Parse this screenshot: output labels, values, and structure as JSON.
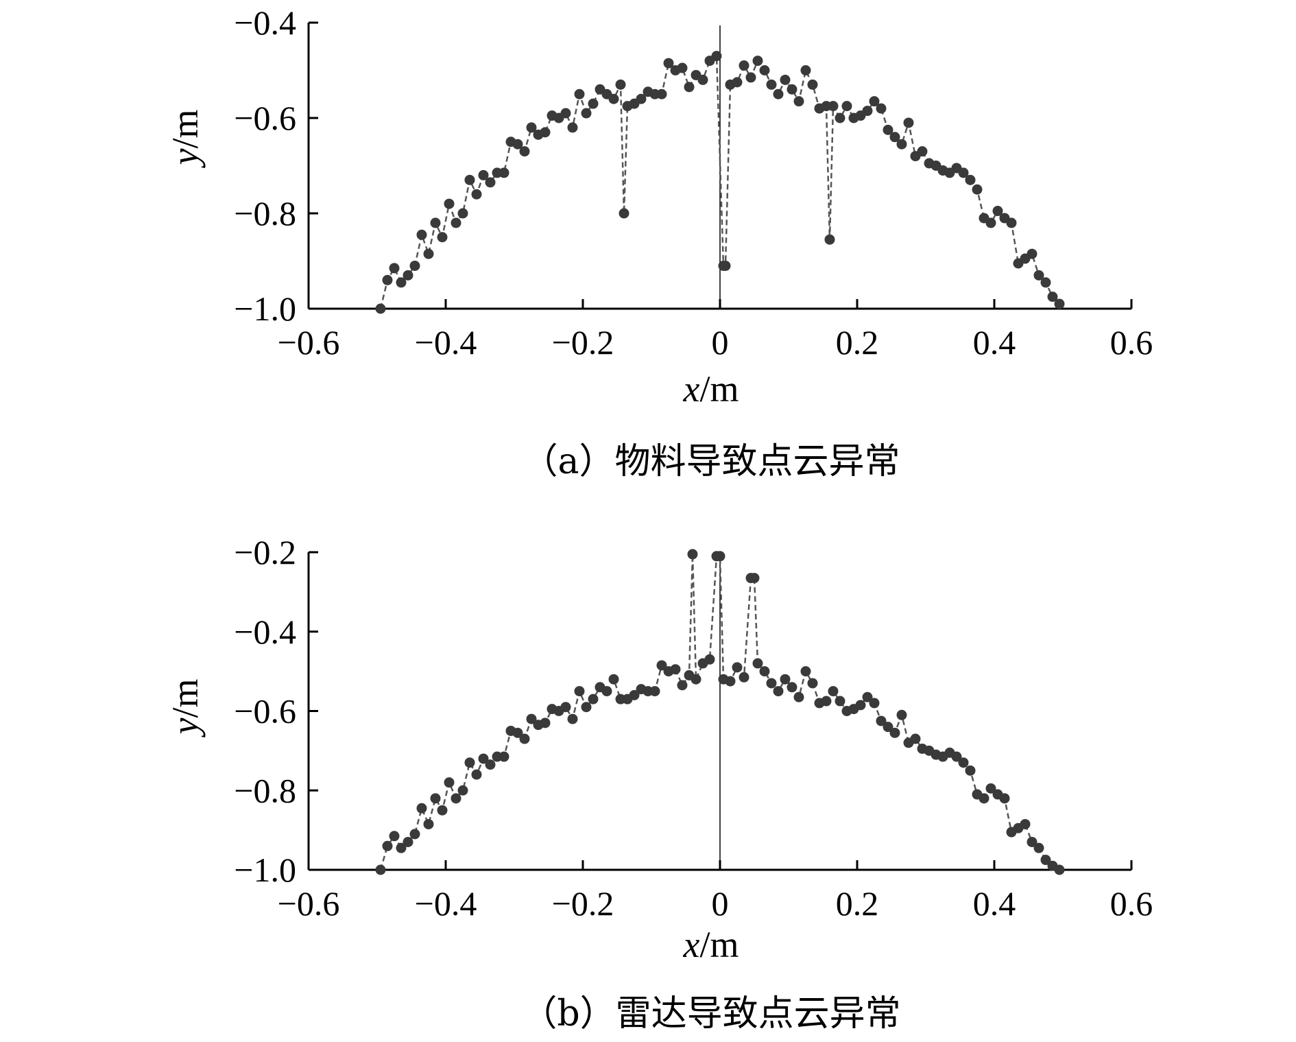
{
  "chart_data": [
    {
      "type": "scatter",
      "caption": "（a）物料导致点云异常",
      "xlabel": {
        "var": "x",
        "unit": "/m"
      },
      "ylabel": {
        "var": "y",
        "unit": "/m"
      },
      "xlim": [
        -0.6,
        0.6
      ],
      "ylim": [
        -1.0,
        -0.4
      ],
      "xticks": [
        "−0.6",
        "−0.4",
        "−0.2",
        "0",
        "0.2",
        "0.4",
        "0.6"
      ],
      "yticks": [
        "−0.4",
        "−0.6",
        "−0.8",
        "−1.0"
      ],
      "xtick_values": [
        -0.6,
        -0.4,
        -0.2,
        0,
        0.2,
        0.4,
        0.6
      ],
      "ytick_values": [
        -0.4,
        -0.6,
        -0.8,
        -1.0
      ],
      "grid": false,
      "center_line_x": 0,
      "marker_color": "#3a3a3a",
      "line_color": "#555555",
      "series": [
        {
          "x": [
            -0.495,
            -0.485,
            -0.475,
            -0.465,
            -0.455,
            -0.445,
            -0.435,
            -0.425,
            -0.415,
            -0.405,
            -0.395,
            -0.385,
            -0.375,
            -0.365,
            -0.355,
            -0.345,
            -0.335,
            -0.325,
            -0.315,
            -0.305,
            -0.295,
            -0.285,
            -0.275,
            -0.265,
            -0.255,
            -0.245,
            -0.235,
            -0.225,
            -0.215,
            -0.205,
            -0.195,
            -0.185,
            -0.175,
            -0.165,
            -0.155,
            -0.145,
            -0.14,
            -0.135,
            -0.125,
            -0.115,
            -0.105,
            -0.095,
            -0.085,
            -0.075,
            -0.065,
            -0.055,
            -0.045,
            -0.035,
            -0.025,
            -0.015,
            -0.005,
            0.005,
            0.008,
            0.015,
            0.025,
            0.035,
            0.045,
            0.055,
            0.065,
            0.075,
            0.085,
            0.095,
            0.105,
            0.115,
            0.125,
            0.135,
            0.145,
            0.155,
            0.16,
            0.165,
            0.175,
            0.185,
            0.195,
            0.205,
            0.215,
            0.225,
            0.235,
            0.245,
            0.255,
            0.265,
            0.275,
            0.285,
            0.295,
            0.305,
            0.315,
            0.325,
            0.335,
            0.345,
            0.355,
            0.365,
            0.375,
            0.385,
            0.395,
            0.405,
            0.415,
            0.425,
            0.435,
            0.445,
            0.455,
            0.465,
            0.475,
            0.485,
            0.495
          ],
          "y": [
            -1.0,
            -0.94,
            -0.915,
            -0.945,
            -0.93,
            -0.91,
            -0.845,
            -0.885,
            -0.82,
            -0.85,
            -0.78,
            -0.82,
            -0.8,
            -0.73,
            -0.76,
            -0.72,
            -0.735,
            -0.715,
            -0.715,
            -0.65,
            -0.655,
            -0.67,
            -0.62,
            -0.635,
            -0.63,
            -0.595,
            -0.6,
            -0.59,
            -0.62,
            -0.55,
            -0.59,
            -0.57,
            -0.54,
            -0.55,
            -0.56,
            -0.53,
            -0.8,
            -0.575,
            -0.57,
            -0.56,
            -0.545,
            -0.55,
            -0.55,
            -0.485,
            -0.5,
            -0.495,
            -0.535,
            -0.51,
            -0.52,
            -0.48,
            -0.47,
            -0.91,
            -0.91,
            -0.53,
            -0.525,
            -0.49,
            -0.515,
            -0.48,
            -0.5,
            -0.53,
            -0.55,
            -0.52,
            -0.54,
            -0.565,
            -0.5,
            -0.53,
            -0.58,
            -0.575,
            -0.855,
            -0.575,
            -0.6,
            -0.575,
            -0.6,
            -0.595,
            -0.585,
            -0.565,
            -0.58,
            -0.625,
            -0.64,
            -0.655,
            -0.61,
            -0.68,
            -0.67,
            -0.695,
            -0.7,
            -0.71,
            -0.715,
            -0.705,
            -0.715,
            -0.73,
            -0.75,
            -0.81,
            -0.82,
            -0.795,
            -0.81,
            -0.82,
            -0.905,
            -0.895,
            -0.885,
            -0.93,
            -0.945,
            -0.975,
            -0.99
          ]
        }
      ]
    },
    {
      "type": "scatter",
      "caption": "（b）雷达导致点云异常",
      "xlabel": {
        "var": "x",
        "unit": "/m"
      },
      "ylabel": {
        "var": "y",
        "unit": "/m"
      },
      "xlim": [
        -0.6,
        0.6
      ],
      "ylim": [
        -1.0,
        -0.2
      ],
      "xticks": [
        "−0.6",
        "−0.4",
        "−0.2",
        "0",
        "0.2",
        "0.4",
        "0.6"
      ],
      "yticks": [
        "−0.2",
        "−0.4",
        "−0.6",
        "−0.8",
        "−1.0"
      ],
      "xtick_values": [
        -0.6,
        -0.4,
        -0.2,
        0,
        0.2,
        0.4,
        0.6
      ],
      "ytick_values": [
        -0.2,
        -0.4,
        -0.6,
        -0.8,
        -1.0
      ],
      "grid": false,
      "center_line_x": 0,
      "marker_color": "#3a3a3a",
      "line_color": "#555555",
      "series": [
        {
          "x": [
            -0.495,
            -0.485,
            -0.475,
            -0.465,
            -0.455,
            -0.445,
            -0.435,
            -0.425,
            -0.415,
            -0.405,
            -0.395,
            -0.385,
            -0.375,
            -0.365,
            -0.355,
            -0.345,
            -0.335,
            -0.325,
            -0.315,
            -0.305,
            -0.295,
            -0.285,
            -0.275,
            -0.265,
            -0.255,
            -0.245,
            -0.235,
            -0.225,
            -0.215,
            -0.205,
            -0.195,
            -0.185,
            -0.175,
            -0.165,
            -0.155,
            -0.145,
            -0.135,
            -0.125,
            -0.115,
            -0.105,
            -0.095,
            -0.085,
            -0.075,
            -0.065,
            -0.055,
            -0.045,
            -0.04,
            -0.035,
            -0.025,
            -0.015,
            -0.005,
            0.0,
            0.005,
            0.015,
            0.025,
            0.035,
            0.045,
            0.05,
            0.055,
            0.065,
            0.075,
            0.085,
            0.095,
            0.105,
            0.115,
            0.125,
            0.135,
            0.145,
            0.155,
            0.165,
            0.175,
            0.185,
            0.195,
            0.205,
            0.215,
            0.225,
            0.235,
            0.245,
            0.255,
            0.265,
            0.275,
            0.285,
            0.295,
            0.305,
            0.315,
            0.325,
            0.335,
            0.345,
            0.355,
            0.365,
            0.375,
            0.385,
            0.395,
            0.405,
            0.415,
            0.425,
            0.435,
            0.445,
            0.455,
            0.465,
            0.475,
            0.485,
            0.495
          ],
          "y": [
            -1.0,
            -0.94,
            -0.915,
            -0.945,
            -0.93,
            -0.91,
            -0.845,
            -0.885,
            -0.82,
            -0.85,
            -0.78,
            -0.82,
            -0.8,
            -0.73,
            -0.76,
            -0.72,
            -0.735,
            -0.715,
            -0.715,
            -0.65,
            -0.655,
            -0.67,
            -0.62,
            -0.635,
            -0.63,
            -0.595,
            -0.6,
            -0.59,
            -0.62,
            -0.55,
            -0.59,
            -0.57,
            -0.54,
            -0.55,
            -0.52,
            -0.57,
            -0.57,
            -0.56,
            -0.545,
            -0.55,
            -0.55,
            -0.485,
            -0.5,
            -0.495,
            -0.535,
            -0.51,
            -0.205,
            -0.52,
            -0.48,
            -0.47,
            -0.21,
            -0.21,
            -0.52,
            -0.525,
            -0.49,
            -0.515,
            -0.265,
            -0.265,
            -0.48,
            -0.5,
            -0.53,
            -0.55,
            -0.52,
            -0.54,
            -0.565,
            -0.5,
            -0.53,
            -0.58,
            -0.575,
            -0.55,
            -0.575,
            -0.6,
            -0.595,
            -0.585,
            -0.565,
            -0.58,
            -0.625,
            -0.64,
            -0.655,
            -0.61,
            -0.68,
            -0.67,
            -0.695,
            -0.7,
            -0.71,
            -0.715,
            -0.705,
            -0.715,
            -0.73,
            -0.75,
            -0.81,
            -0.82,
            -0.795,
            -0.81,
            -0.82,
            -0.905,
            -0.895,
            -0.885,
            -0.93,
            -0.945,
            -0.975,
            -0.99,
            -1.0
          ]
        }
      ]
    }
  ]
}
